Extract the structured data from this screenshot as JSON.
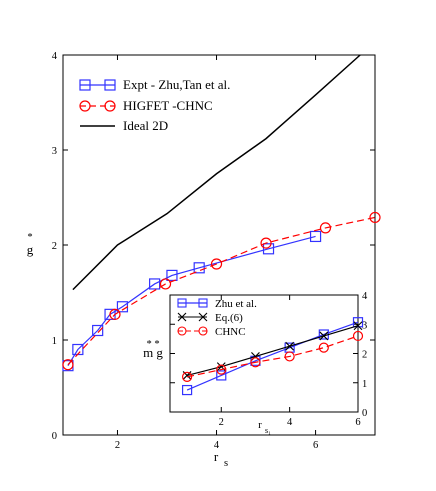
{
  "chart_data": [
    {
      "type": "line",
      "role": "main",
      "xlabel": "r",
      "xlabel_sub": "s",
      "ylabel": "g",
      "ylabel_sup": "*",
      "xlim": [
        0.9,
        7.2
      ],
      "ylim": [
        0,
        4
      ],
      "xticks": [
        2,
        4,
        6
      ],
      "yticks": [
        0,
        1,
        2,
        3,
        4
      ],
      "legend_position": "top-left",
      "series": [
        {
          "name": "Expt - Zhu,Tan et al.",
          "color": "#3333ff",
          "marker": "square",
          "line": "solid",
          "x": [
            1.0,
            1.2,
            1.6,
            1.85,
            2.1,
            2.75,
            3.1,
            3.65,
            5.05,
            6.0
          ],
          "y": [
            0.73,
            0.9,
            1.1,
            1.27,
            1.35,
            1.59,
            1.68,
            1.76,
            1.96,
            2.09
          ]
        },
        {
          "name": "HIGFET -CHNC",
          "color": "#ff0000",
          "marker": "circle",
          "line": "dashed",
          "x": [
            1.0,
            1.95,
            2.97,
            4.0,
            5.0,
            6.2,
            7.2
          ],
          "y": [
            0.74,
            1.27,
            1.59,
            1.8,
            2.02,
            2.18,
            2.29
          ]
        },
        {
          "name": "Ideal 2D",
          "color": "#000000",
          "marker": "none",
          "line": "solid",
          "x": [
            1.1,
            2.0,
            3.0,
            4.0,
            5.0,
            6.0,
            6.9
          ],
          "y": [
            1.53,
            2.0,
            2.33,
            2.75,
            3.12,
            3.58,
            4.0
          ]
        }
      ]
    },
    {
      "type": "line",
      "role": "inset",
      "xlabel": "r",
      "xlabel_sub": "s₁",
      "ylabel": "m g",
      "ylabel_sup": "* *",
      "xlim": [
        0.5,
        6.0
      ],
      "ylim": [
        0,
        4
      ],
      "xticks": [
        2,
        4,
        6
      ],
      "yticks": [
        0,
        1,
        2,
        3,
        4
      ],
      "legend_position": "top-left",
      "series": [
        {
          "name": "Zhu et al.",
          "color": "#3333ff",
          "marker": "square",
          "line": "solid",
          "x": [
            1.0,
            2.0,
            3.0,
            4.0,
            5.0,
            6.0
          ],
          "y": [
            0.75,
            1.25,
            1.75,
            2.2,
            2.65,
            3.07
          ]
        },
        {
          "name": "Eq.(6)",
          "color": "#000000",
          "marker": "x",
          "line": "solid",
          "x": [
            1.0,
            2.0,
            3.0,
            4.0,
            5.0,
            6.0
          ],
          "y": [
            1.25,
            1.55,
            1.9,
            2.25,
            2.6,
            2.95
          ]
        },
        {
          "name": "CHNC",
          "color": "#ff0000",
          "marker": "circle",
          "line": "dashed",
          "x": [
            1.0,
            2.0,
            3.0,
            4.0,
            5.0,
            6.0
          ],
          "y": [
            1.2,
            1.45,
            1.7,
            1.9,
            2.2,
            2.6
          ]
        }
      ]
    }
  ]
}
